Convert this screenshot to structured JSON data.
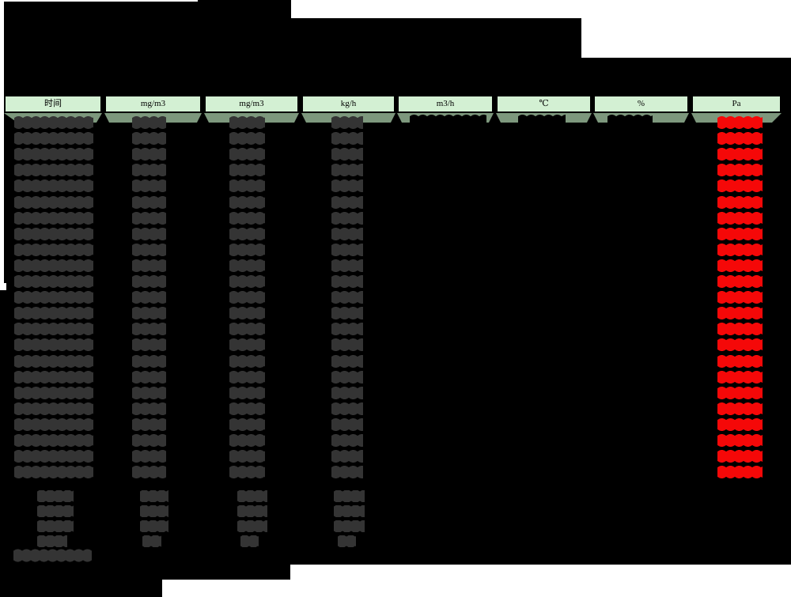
{
  "meta": {
    "description": "Redacted continuous-emissions monitoring data table on black background",
    "values_legible": false
  },
  "colors": {
    "canvas_background": "#000000",
    "margin_white": "#ffffff",
    "header_fill": "#d3f0d3",
    "header_border": "#000000",
    "header_shadow_green": "#7d987d",
    "redacted_value_gray": "#343434",
    "redacted_value_black": "#000000",
    "pressure_value_red": "#f50808"
  },
  "header": {
    "columns": [
      {
        "id": "time",
        "label": "时间"
      },
      {
        "id": "conc1",
        "label": "mg/m3"
      },
      {
        "id": "conc2",
        "label": "mg/m3"
      },
      {
        "id": "rate",
        "label": "kg/h"
      },
      {
        "id": "flow",
        "label": "m3/h"
      },
      {
        "id": "temp",
        "label": "℃"
      },
      {
        "id": "humidity",
        "label": "%"
      },
      {
        "id": "pressure",
        "label": "Pa"
      }
    ]
  },
  "body": {
    "data_row_count": 23,
    "columns_with_values_every_row": [
      "time",
      "conc1",
      "conc2",
      "rate",
      "pressure"
    ],
    "columns_with_value_first_row_only": [
      "flow",
      "temp",
      "humidity"
    ],
    "pressure_column_text_color": "red",
    "other_columns_text_color": "dark-gray",
    "summary_row_count": 4,
    "summary_columns_with_values": [
      "time",
      "conc1",
      "conc2",
      "rate"
    ],
    "footer_note_row_count": 1
  }
}
